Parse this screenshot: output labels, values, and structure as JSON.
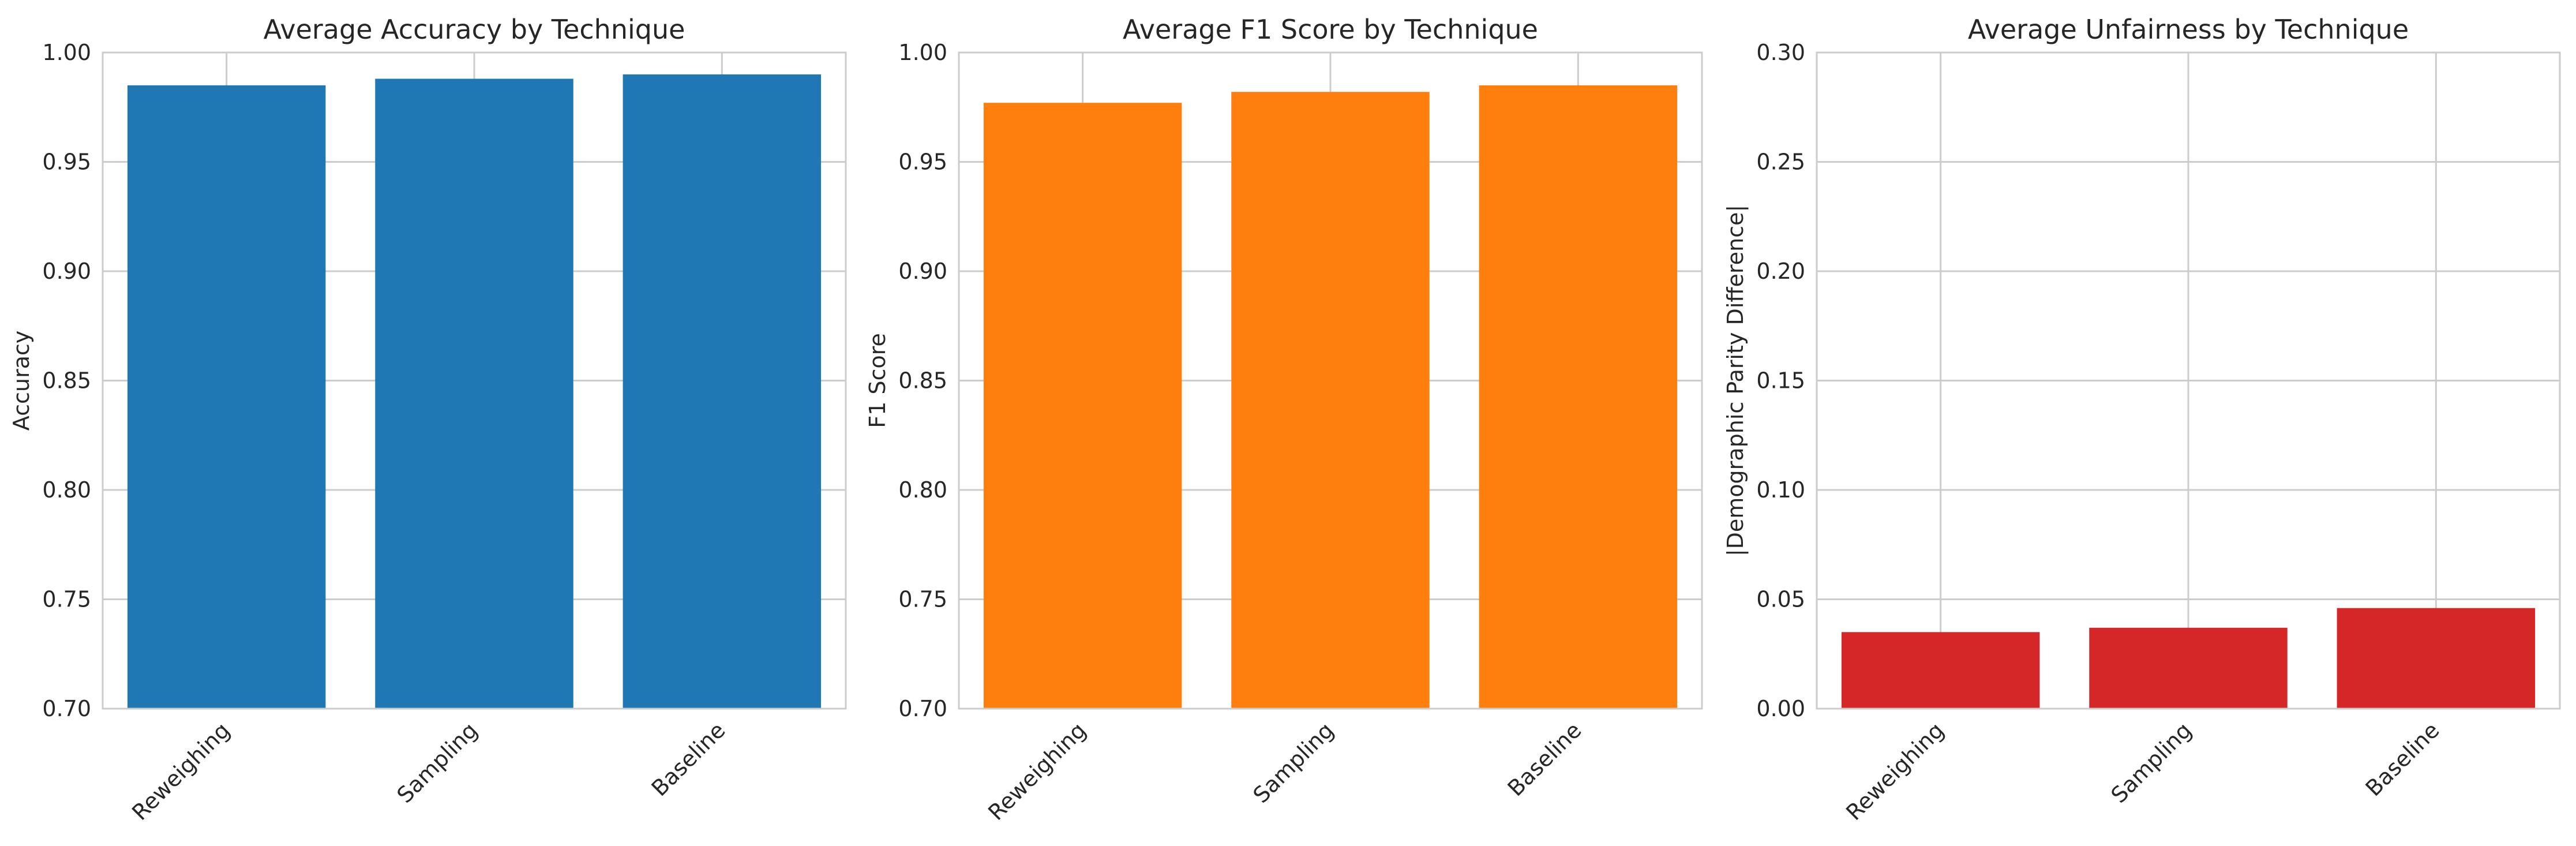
{
  "chart_data": [
    {
      "type": "bar",
      "title": "Average Accuracy by Technique",
      "xlabel": "",
      "ylabel": "Accuracy",
      "categories": [
        "Reweighing",
        "Sampling",
        "Baseline"
      ],
      "values": [
        0.985,
        0.988,
        0.99
      ],
      "ylim": [
        0.7,
        1.0
      ],
      "yticks": [
        "0.70",
        "0.75",
        "0.80",
        "0.85",
        "0.90",
        "0.95",
        "1.00"
      ],
      "color": "#1f77b4",
      "grid": true
    },
    {
      "type": "bar",
      "title": "Average F1 Score by Technique",
      "xlabel": "",
      "ylabel": "F1 Score",
      "categories": [
        "Reweighing",
        "Sampling",
        "Baseline"
      ],
      "values": [
        0.977,
        0.982,
        0.985
      ],
      "ylim": [
        0.7,
        1.0
      ],
      "yticks": [
        "0.70",
        "0.75",
        "0.80",
        "0.85",
        "0.90",
        "0.95",
        "1.00"
      ],
      "color": "#ff7f0e",
      "grid": true
    },
    {
      "type": "bar",
      "title": "Average Unfairness by Technique",
      "xlabel": "",
      "ylabel": "|Demographic Parity Difference|",
      "categories": [
        "Reweighing",
        "Sampling",
        "Baseline"
      ],
      "values": [
        0.035,
        0.037,
        0.046
      ],
      "ylim": [
        0.0,
        0.3
      ],
      "yticks": [
        "0.00",
        "0.05",
        "0.10",
        "0.15",
        "0.20",
        "0.25",
        "0.30"
      ],
      "color": "#d62728",
      "grid": true
    }
  ]
}
